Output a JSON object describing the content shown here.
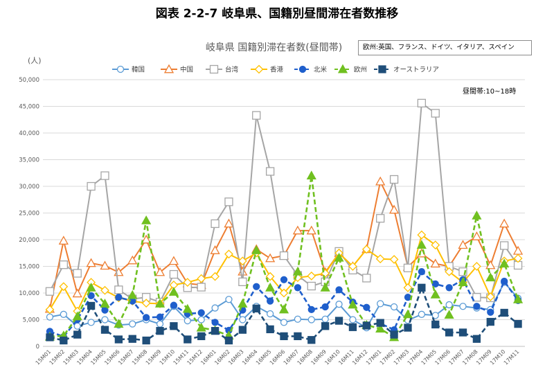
{
  "figure_title": "図表 2-2-7 岐阜県、国籍別昼間滞在者数推移",
  "chart_data": {
    "type": "line",
    "title": "岐阜県 国籍別滞在者数(昼間帯)",
    "ylabel": "(人)",
    "xlabel": "",
    "ylim": [
      0,
      50000
    ],
    "yticks": [
      "0",
      "5,000",
      "10,000",
      "15,000",
      "20,000",
      "25,000",
      "30,000",
      "35,000",
      "40,000",
      "45,000",
      "50,000"
    ],
    "grid": true,
    "legend_position": "top",
    "note_box": "欧州:英国、フランス、ドイツ、イタリア、スペイン",
    "annotation": "昼間帯:10~18時",
    "categories": [
      "15M01",
      "15M02",
      "15M03",
      "15M04",
      "15M05",
      "15M06",
      "15M07",
      "15M08",
      "15M09",
      "15M10",
      "15M11",
      "15M12",
      "16M01",
      "16M02",
      "16M03",
      "16M04",
      "16M05",
      "16M06",
      "16M07",
      "16M08",
      "16M09",
      "16M10",
      "16M11",
      "16M12",
      "17M01",
      "17M02",
      "17M03",
      "17M04",
      "17M05",
      "17M06",
      "17M07",
      "17M08",
      "17M09",
      "17M10",
      "17M11"
    ],
    "series": [
      {
        "name": "韓国",
        "color": "#5b9bd5",
        "marker": "circle-open",
        "dash": "solid",
        "values": [
          5500,
          6000,
          3800,
          4500,
          5000,
          4000,
          4200,
          5000,
          4200,
          7500,
          4800,
          5000,
          7200,
          8800,
          5000,
          7500,
          6100,
          4500,
          5100,
          5000,
          5100,
          7900,
          5000,
          3500,
          8000,
          7400,
          4900,
          6000,
          5800,
          7800,
          7500,
          7200,
          6900,
          12000,
          9000
        ]
      },
      {
        "name": "中国",
        "color": "#ed7d31",
        "marker": "triangle-open",
        "dash": "solid",
        "values": [
          7000,
          19800,
          9900,
          15600,
          15100,
          13900,
          16100,
          20000,
          13900,
          16000,
          11800,
          11500,
          18000,
          23000,
          14000,
          18200,
          16500,
          17000,
          21700,
          21700,
          13900,
          17500,
          15000,
          18200,
          30900,
          25600,
          14900,
          17400,
          15500,
          15000,
          19000,
          20600,
          15200,
          23000,
          17900
        ]
      },
      {
        "name": "台湾",
        "color": "#a5a5a5",
        "marker": "square-open",
        "dash": "solid",
        "values": [
          10300,
          15300,
          13700,
          30000,
          32000,
          10600,
          8900,
          9200,
          8300,
          13500,
          11000,
          11100,
          23000,
          27100,
          12100,
          43300,
          32800,
          17000,
          13300,
          11300,
          12100,
          17800,
          14300,
          12800,
          24000,
          31300,
          14700,
          45600,
          43700,
          15000,
          14000,
          9200,
          9100,
          18900,
          15200
        ]
      },
      {
        "name": "香港",
        "color": "#ffc000",
        "marker": "diamond-open",
        "dash": "solid",
        "values": [
          6900,
          11200,
          6600,
          12000,
          10500,
          9100,
          8500,
          8100,
          8000,
          11500,
          12000,
          12700,
          13100,
          17300,
          16000,
          17500,
          13100,
          10000,
          12900,
          13200,
          13700,
          17500,
          15000,
          18200,
          16400,
          16300,
          11000,
          20900,
          19000,
          14000,
          12000,
          15000,
          9300,
          16000,
          16500
        ]
      },
      {
        "name": "北米",
        "color": "#1f5fcc",
        "marker": "circle-filled",
        "dash": "dashed",
        "values": [
          2800,
          1800,
          5000,
          9500,
          6800,
          9200,
          8500,
          5400,
          5500,
          7700,
          6100,
          6300,
          4500,
          3000,
          6800,
          11200,
          8500,
          12500,
          11000,
          6900,
          7400,
          10600,
          8300,
          7300,
          4300,
          3100,
          9200,
          14000,
          11700,
          11000,
          12500,
          7500,
          6400,
          12200,
          8600
        ]
      },
      {
        "name": "欧州",
        "color": "#70c020",
        "marker": "triangle-filled",
        "dash": "dashed",
        "values": [
          1800,
          2000,
          5600,
          11000,
          8000,
          4200,
          9600,
          23600,
          8000,
          10200,
          7000,
          3500,
          3000,
          2000,
          8000,
          18000,
          11000,
          6900,
          14000,
          32000,
          11000,
          16600,
          7800,
          4000,
          3300,
          1700,
          6000,
          19000,
          9700,
          5900,
          12000,
          24500,
          12900,
          15500,
          8800
        ]
      },
      {
        "name": "オーストラリア",
        "color": "#1f4e79",
        "marker": "square-filled",
        "dash": "dashed",
        "values": [
          1700,
          1100,
          2200,
          7600,
          3100,
          1300,
          1400,
          1100,
          2900,
          3800,
          1300,
          1900,
          2900,
          1100,
          3100,
          7100,
          3200,
          1900,
          1900,
          1200,
          3800,
          4800,
          3600,
          3900,
          4400,
          2200,
          3500,
          11000,
          4100,
          2600,
          2600,
          1400,
          4600,
          6300,
          4200
        ]
      }
    ]
  }
}
